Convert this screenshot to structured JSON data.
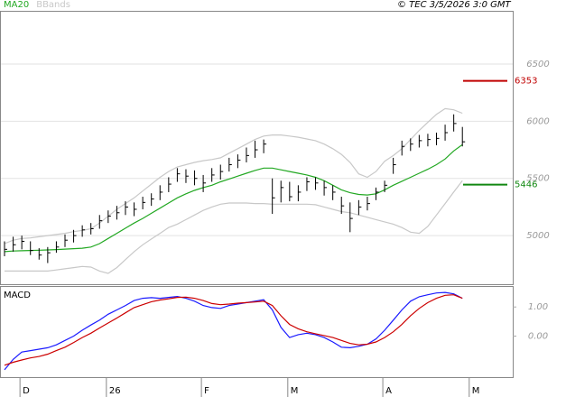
{
  "chart_data": [
    {
      "type": "ohlc",
      "source": "© TEC 3/5/2026 3:0 GMT",
      "bar_color": "#000000",
      "ylim": [
        4575,
        6965
      ],
      "yticks": [
        5000,
        5500,
        6000,
        6500
      ],
      "grid": true,
      "high": [
        4950,
        4990,
        5000,
        4950,
        4890,
        4900,
        4950,
        5010,
        5050,
        5090,
        5110,
        5180,
        5220,
        5260,
        5300,
        5290,
        5340,
        5370,
        5440,
        5510,
        5590,
        5580,
        5570,
        5530,
        5590,
        5620,
        5680,
        5710,
        5770,
        5830,
        5840,
        5500,
        5480,
        5470,
        5440,
        5510,
        5510,
        5480,
        5440,
        5340,
        5290,
        5310,
        5340,
        5420,
        5480,
        5680,
        5830,
        5850,
        5880,
        5890,
        5900,
        5970,
        6060,
        5950,
        null
      ],
      "low": [
        4820,
        4860,
        4880,
        4830,
        4790,
        4760,
        4850,
        4900,
        4940,
        4990,
        5010,
        5060,
        5110,
        5140,
        5180,
        5170,
        5230,
        5260,
        5310,
        5380,
        5470,
        5460,
        5440,
        5380,
        5470,
        5490,
        5560,
        5590,
        5640,
        5680,
        5720,
        5190,
        5290,
        5300,
        5300,
        5390,
        5400,
        5350,
        5310,
        5190,
        5030,
        5180,
        5220,
        5310,
        5380,
        5540,
        5700,
        5740,
        5770,
        5780,
        5790,
        5830,
        5910,
        5780,
        null
      ],
      "close": [
        4880,
        4920,
        4950,
        4870,
        4830,
        4850,
        4900,
        4960,
        5000,
        5050,
        5060,
        5130,
        5170,
        5200,
        5250,
        5230,
        5290,
        5320,
        5380,
        5450,
        5540,
        5520,
        5500,
        5460,
        5530,
        5560,
        5620,
        5660,
        5700,
        5750,
        5800,
        5330,
        5420,
        5340,
        5380,
        5470,
        5460,
        5420,
        5380,
        5260,
        5150,
        5250,
        5280,
        5380,
        5440,
        5620,
        5780,
        5800,
        5830,
        5840,
        5850,
        5900,
        5980,
        5820,
        null
      ],
      "series": [
        {
          "name": "MA20",
          "color": "#22a822",
          "values": [
            4860,
            4865,
            4868,
            4870,
            4872,
            4875,
            4878,
            4882,
            4886,
            4890,
            4900,
            4930,
            4975,
            5020,
            5065,
            5110,
            5150,
            5195,
            5240,
            5285,
            5330,
            5365,
            5395,
            5420,
            5440,
            5470,
            5495,
            5520,
            5545,
            5570,
            5590,
            5590,
            5575,
            5560,
            5545,
            5530,
            5510,
            5480,
            5440,
            5400,
            5375,
            5360,
            5355,
            5365,
            5400,
            5440,
            5475,
            5510,
            5545,
            5580,
            5620,
            5670,
            5740,
            5795,
            null
          ]
        },
        {
          "name": "BBands",
          "color": "#c8c8c8",
          "upper": [
            4930,
            4960,
            4975,
            4980,
            4990,
            5000,
            5010,
            5020,
            5035,
            5045,
            5060,
            5110,
            5170,
            5230,
            5280,
            5330,
            5390,
            5450,
            5510,
            5560,
            5600,
            5620,
            5640,
            5655,
            5665,
            5680,
            5720,
            5760,
            5800,
            5840,
            5870,
            5880,
            5880,
            5870,
            5860,
            5845,
            5830,
            5800,
            5760,
            5710,
            5640,
            5540,
            5510,
            5560,
            5650,
            5700,
            5760,
            5840,
            5920,
            5990,
            6060,
            6110,
            6100,
            6070,
            null
          ],
          "lower": [
            4690,
            4690,
            4690,
            4690,
            4690,
            4690,
            4700,
            4710,
            4720,
            4730,
            4725,
            4690,
            4670,
            4720,
            4790,
            4860,
            4920,
            4970,
            5020,
            5070,
            5100,
            5140,
            5180,
            5220,
            5250,
            5275,
            5285,
            5285,
            5285,
            5280,
            5280,
            5275,
            5275,
            5275,
            5275,
            5275,
            5270,
            5250,
            5230,
            5210,
            5200,
            5180,
            5160,
            5140,
            5120,
            5100,
            5070,
            5030,
            5020,
            5080,
            5180,
            5280,
            5380,
            5480,
            null
          ]
        }
      ],
      "annotations": [
        {
          "value": 6353,
          "color": "#c00000"
        },
        {
          "value": 5446,
          "color": "#118811"
        }
      ]
    },
    {
      "type": "line",
      "title": "MACD",
      "ylim": [
        -1.41,
        1.72
      ],
      "yticks": [
        {
          "value": 1,
          "label": "1.00"
        },
        {
          "value": 0,
          "label": "0.00"
        }
      ],
      "categories": [
        null,
        null,
        "D",
        null,
        null,
        null,
        null,
        null,
        null,
        null,
        null,
        null,
        "26",
        null,
        null,
        null,
        null,
        null,
        null,
        null,
        null,
        null,
        null,
        "F",
        null,
        null,
        null,
        null,
        null,
        null,
        null,
        null,
        null,
        "M",
        null,
        null,
        null,
        null,
        null,
        null,
        null,
        null,
        null,
        null,
        "A",
        null,
        null,
        null,
        null,
        null,
        null,
        null,
        null,
        null,
        "M"
      ],
      "series": [
        {
          "color": "#1a1aff",
          "values": [
            -1.16,
            -0.8,
            -0.55,
            -0.5,
            -0.45,
            -0.4,
            -0.3,
            -0.15,
            0.0,
            0.2,
            0.38,
            0.55,
            0.75,
            0.9,
            1.05,
            1.22,
            1.3,
            1.32,
            1.3,
            1.33,
            1.36,
            1.3,
            1.2,
            1.05,
            0.98,
            0.95,
            1.05,
            1.1,
            1.15,
            1.2,
            1.25,
            0.9,
            0.3,
            -0.05,
            0.05,
            0.1,
            0.05,
            -0.05,
            -0.2,
            -0.38,
            -0.4,
            -0.35,
            -0.28,
            -0.1,
            0.2,
            0.55,
            0.9,
            1.2,
            1.35,
            1.42,
            1.48,
            1.5,
            1.45,
            1.3,
            null
          ]
        },
        {
          "color": "#cc0000",
          "values": [
            -1.0,
            -0.9,
            -0.82,
            -0.75,
            -0.7,
            -0.62,
            -0.5,
            -0.38,
            -0.22,
            -0.05,
            0.1,
            0.28,
            0.45,
            0.62,
            0.8,
            0.98,
            1.08,
            1.18,
            1.24,
            1.28,
            1.33,
            1.34,
            1.3,
            1.22,
            1.12,
            1.08,
            1.1,
            1.13,
            1.15,
            1.17,
            1.2,
            1.05,
            0.7,
            0.4,
            0.25,
            0.15,
            0.08,
            0.02,
            -0.05,
            -0.15,
            -0.25,
            -0.3,
            -0.28,
            -0.2,
            -0.05,
            0.15,
            0.4,
            0.7,
            0.95,
            1.15,
            1.3,
            1.4,
            1.42,
            1.3,
            null
          ]
        }
      ]
    }
  ]
}
